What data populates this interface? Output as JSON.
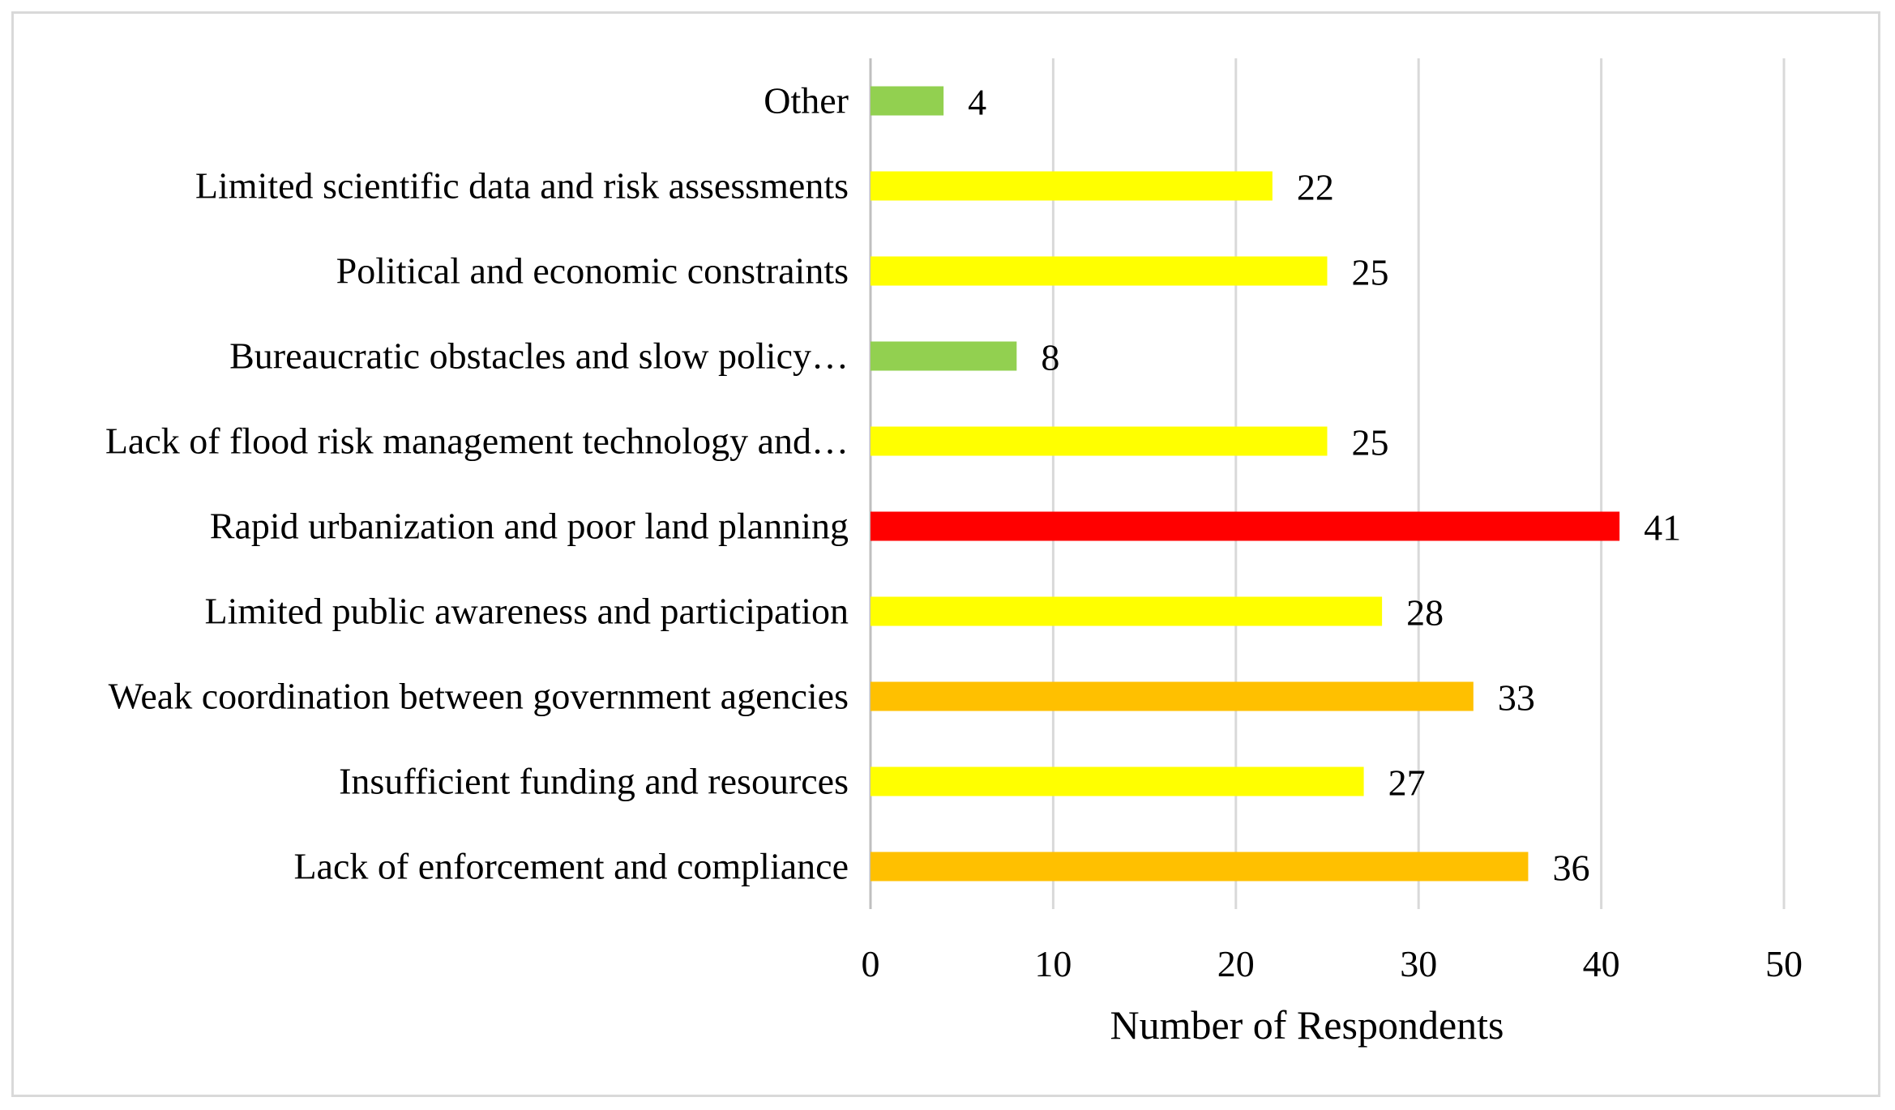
{
  "chart_data": {
    "type": "bar",
    "orientation": "horizontal",
    "title": "",
    "xlabel": "Number of Respondents",
    "ylabel": "",
    "xlim": [
      0,
      50
    ],
    "xticks": [
      0,
      10,
      20,
      30,
      40,
      50
    ],
    "grid": true,
    "legend": "none",
    "categories": [
      "Other",
      "Limited scientific data and risk assessments",
      "Political and economic constraints",
      "Bureaucratic obstacles and slow policy…",
      "Lack of flood risk management technology and…",
      "Rapid urbanization and poor land planning",
      "Limited public awareness and participation",
      "Weak coordination between government agencies",
      "Insufficient funding and resources",
      "Lack of enforcement and compliance"
    ],
    "values": [
      4,
      22,
      25,
      8,
      25,
      41,
      28,
      33,
      27,
      36
    ],
    "bar_colors": [
      "#92d050",
      "#ffff00",
      "#ffff00",
      "#92d050",
      "#ffff00",
      "#ff0000",
      "#ffff00",
      "#ffc000",
      "#ffff00",
      "#ffc000"
    ]
  }
}
